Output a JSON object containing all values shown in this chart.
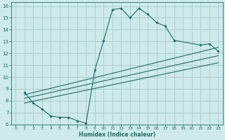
{
  "xlabel": "Humidex (Indice chaleur)",
  "bg_color": "#ceeaea",
  "grid_color": "#a8cccc",
  "line_color": "#1a7068",
  "xlim": [
    -0.5,
    23.5
  ],
  "ylim": [
    6,
    16.3
  ],
  "xticks": [
    0,
    1,
    2,
    3,
    4,
    5,
    6,
    7,
    8,
    9,
    10,
    11,
    12,
    13,
    14,
    15,
    16,
    17,
    18,
    19,
    20,
    21,
    22,
    23
  ],
  "yticks": [
    6,
    7,
    8,
    9,
    10,
    11,
    12,
    13,
    14,
    15,
    16
  ],
  "curve1_x": [
    1,
    2,
    3,
    4,
    5,
    6,
    7,
    8,
    9,
    10,
    11,
    12,
    13,
    14,
    15,
    16,
    17,
    18,
    21,
    22,
    23
  ],
  "curve1_y": [
    8.7,
    7.8,
    7.3,
    6.7,
    6.6,
    6.6,
    6.3,
    6.1,
    10.6,
    13.1,
    15.7,
    15.8,
    15.0,
    15.8,
    15.3,
    14.6,
    14.3,
    13.1,
    12.7,
    12.8,
    12.2
  ],
  "line1_x": [
    1,
    23
  ],
  "line1_y": [
    8.5,
    12.5
  ],
  "line2_x": [
    1,
    23
  ],
  "line2_y": [
    8.2,
    11.8
  ],
  "line3_x": [
    1,
    23
  ],
  "line3_y": [
    7.8,
    11.2
  ]
}
